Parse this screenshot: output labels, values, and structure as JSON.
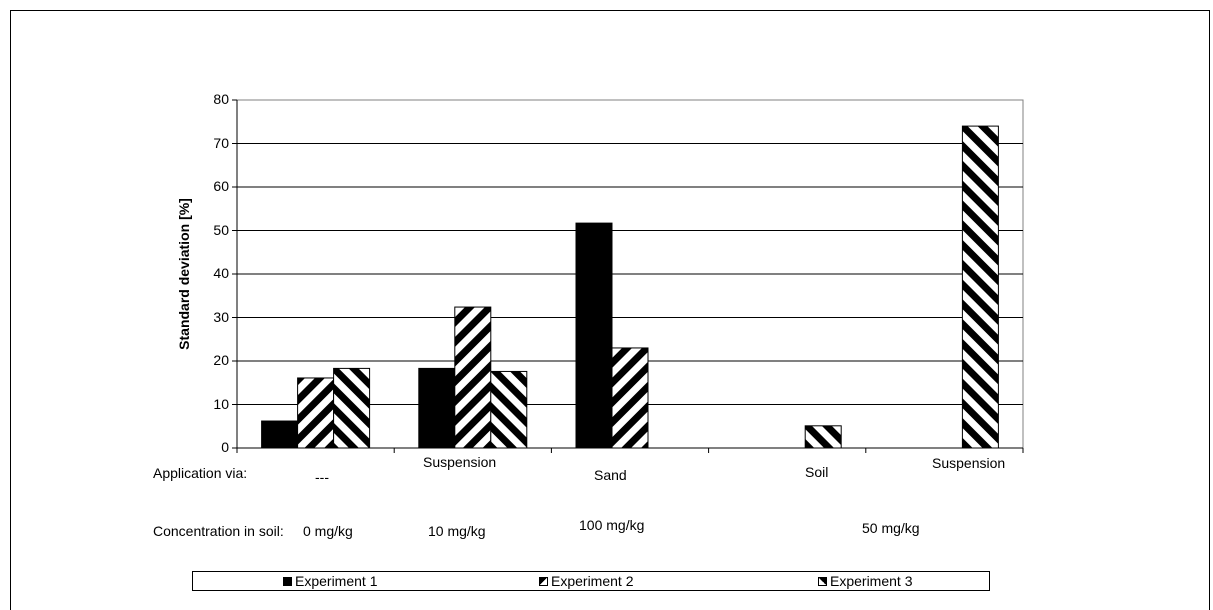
{
  "chart_data": {
    "type": "bar",
    "title": "",
    "ylabel": "Standard deviation  [%]",
    "ylim": [
      0,
      80
    ],
    "yticks": [
      0,
      10,
      20,
      30,
      40,
      50,
      60,
      70,
      80
    ],
    "grid": true,
    "legend_position": "bottom",
    "categories": [
      "---",
      "Suspension",
      "Sand",
      "Soil",
      "Suspension"
    ],
    "series": [
      {
        "name": "Experiment 1",
        "values": [
          6.2,
          18.3,
          51.7,
          null,
          null
        ],
        "pattern": "solid"
      },
      {
        "name": "Experiment 2",
        "values": [
          16.1,
          32.4,
          23.0,
          null,
          null
        ],
        "pattern": "diagonal-up"
      },
      {
        "name": "Experiment 3",
        "values": [
          18.3,
          17.6,
          null,
          5.1,
          74.0
        ],
        "pattern": "diagonal-down"
      }
    ]
  },
  "table_rows": {
    "application_label": "Application via:",
    "concentration_label": "Concentration in soil:",
    "concentrations": [
      "0 mg/kg",
      "10 mg/kg",
      "100 mg/kg",
      "50 mg/kg"
    ]
  }
}
